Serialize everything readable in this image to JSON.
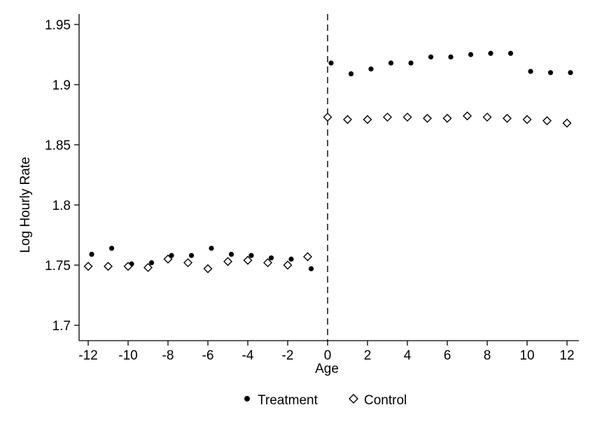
{
  "chart_data": {
    "type": "scatter",
    "title": "",
    "xlabel": "Age",
    "ylabel": "Log Hourly Rate",
    "xlim": [
      -12.3,
      12.3
    ],
    "ylim": [
      1.7,
      1.96
    ],
    "x_ticks": [
      "-12",
      "-10",
      "-8",
      "-6",
      "-4",
      "-2",
      "0",
      "2",
      "4",
      "6",
      "8",
      "10",
      "12"
    ],
    "y_ticks": [
      "1.7",
      "1.75",
      "1.8",
      "1.85",
      "1.9",
      "1.95"
    ],
    "reference_line": {
      "x": 0,
      "style": "dashed"
    },
    "grid": false,
    "legend_position": "bottom",
    "series": [
      {
        "name": "Treatment",
        "marker": "filled-circle",
        "points": [
          [
            -12,
            1.759
          ],
          [
            -11,
            1.764
          ],
          [
            -10,
            1.751
          ],
          [
            -9,
            1.752
          ],
          [
            -8,
            1.758
          ],
          [
            -7,
            1.758
          ],
          [
            -6,
            1.764
          ],
          [
            -5,
            1.759
          ],
          [
            -4,
            1.758
          ],
          [
            -3,
            1.756
          ],
          [
            -2,
            1.755
          ],
          [
            -1,
            1.747
          ],
          [
            0,
            1.918
          ],
          [
            1,
            1.909
          ],
          [
            2,
            1.913
          ],
          [
            3,
            1.918
          ],
          [
            4,
            1.918
          ],
          [
            5,
            1.923
          ],
          [
            6,
            1.923
          ],
          [
            7,
            1.925
          ],
          [
            8,
            1.926
          ],
          [
            9,
            1.926
          ],
          [
            10,
            1.911
          ],
          [
            11,
            1.91
          ],
          [
            12,
            1.91
          ]
        ]
      },
      {
        "name": "Control",
        "marker": "hollow-diamond",
        "points": [
          [
            -12,
            1.749
          ],
          [
            -11,
            1.749
          ],
          [
            -10,
            1.749
          ],
          [
            -9,
            1.748
          ],
          [
            -8,
            1.755
          ],
          [
            -7,
            1.752
          ],
          [
            -6,
            1.747
          ],
          [
            -5,
            1.753
          ],
          [
            -4,
            1.754
          ],
          [
            -3,
            1.752
          ],
          [
            -2,
            1.75
          ],
          [
            -1,
            1.757
          ],
          [
            0,
            1.873
          ],
          [
            1,
            1.871
          ],
          [
            2,
            1.871
          ],
          [
            3,
            1.873
          ],
          [
            4,
            1.873
          ],
          [
            5,
            1.872
          ],
          [
            6,
            1.872
          ],
          [
            7,
            1.874
          ],
          [
            8,
            1.873
          ],
          [
            9,
            1.872
          ],
          [
            10,
            1.871
          ],
          [
            11,
            1.87
          ],
          [
            12,
            1.868
          ]
        ]
      }
    ]
  }
}
